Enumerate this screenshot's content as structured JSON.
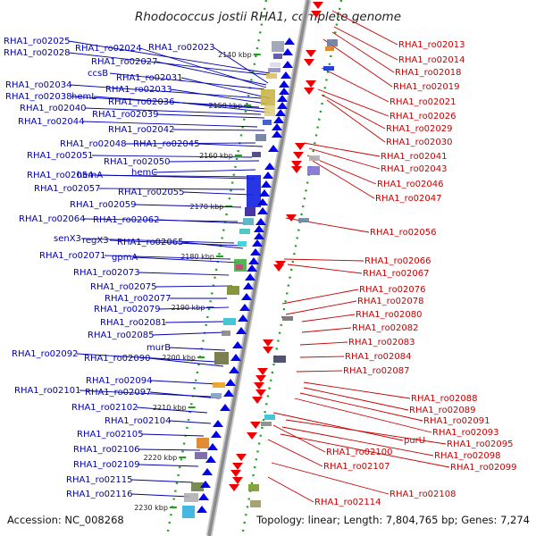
{
  "title": "Rhodococcus jostii RHA1, complete genome",
  "accession_text": "Accession: NC_008268",
  "topology_text": "Topology: linear; Length: 7,804,765 bp; Genes: 7,274",
  "colors": {
    "forward_label": "#0000b0",
    "reverse_label": "#c80000",
    "forward_arrow": "#0000ee",
    "reverse_arrow": "#ee0000",
    "axis": "#909090",
    "tick": "#20a020"
  },
  "kbp_marks": [
    "2140 kbp",
    "2150 kbp",
    "2160 kbp",
    "2170 kbp",
    "2180 kbp",
    "2190 kbp",
    "2200 kbp",
    "2210 kbp",
    "2220 kbp",
    "2230 kbp"
  ],
  "left_genes": [
    "RHA1_ro02025",
    "RHA1_ro02024",
    "RHA1_ro02023",
    "RHA1_ro02028",
    "RHA1_ro02027",
    "ccsB",
    "RHA1_ro02031",
    "RHA1_ro02034",
    "RHA1_ro02033",
    "RHA1_ro02038",
    "hemL",
    "RHA1_ro02036",
    "RHA1_ro02040",
    "RHA1_ro02039",
    "RHA1_ro02044",
    "RHA1_ro02042",
    "RHA1_ro02048",
    "RHA1_ro02045",
    "RHA1_ro02051",
    "RHA1_ro02050",
    "hemC",
    "RHA1_ro02054",
    "hemA",
    "RHA1_ro02057",
    "RHA1_ro02055",
    "RHA1_ro02059",
    "RHA1_ro02064",
    "RHA1_ro02062",
    "senX3",
    "regX3",
    "RHA1_ro02065",
    "RHA1_ro02071",
    "gpmA",
    "RHA1_ro02073",
    "RHA1_ro02075",
    "RHA1_ro02077",
    "RHA1_ro02079",
    "RHA1_ro02081",
    "RHA1_ro02085",
    "murB",
    "RHA1_ro02092",
    "RHA1_ro02090",
    "RHA1_ro02094",
    "RHA1_ro02101",
    "RHA1_ro02097",
    "RHA1_ro02102",
    "RHA1_ro02104",
    "RHA1_ro02105",
    "RHA1_ro02106",
    "RHA1_ro02109",
    "RHA1_ro02115",
    "RHA1_ro02116"
  ],
  "right_genes": [
    "RHA1_ro02013",
    "RHA1_ro02014",
    "RHA1_ro02018",
    "RHA1_ro02019",
    "RHA1_ro02021",
    "RHA1_ro02026",
    "RHA1_ro02029",
    "RHA1_ro02030",
    "RHA1_ro02041",
    "RHA1_ro02043",
    "RHA1_ro02046",
    "RHA1_ro02047",
    "RHA1_ro02056",
    "RHA1_ro02066",
    "RHA1_ro02067",
    "RHA1_ro02076",
    "RHA1_ro02078",
    "RHA1_ro02080",
    "RHA1_ro02082",
    "RHA1_ro02083",
    "RHA1_ro02084",
    "RHA1_ro02087",
    "RHA1_ro02088",
    "RHA1_ro02089",
    "RHA1_ro02091",
    "RHA1_ro02093",
    "purU",
    "RHA1_ro02095",
    "RHA1_ro02098",
    "RHA1_ro02099",
    "RHA1_ro02100",
    "RHA1_ro02107",
    "RHA1_ro02108",
    "RHA1_ro02114"
  ]
}
